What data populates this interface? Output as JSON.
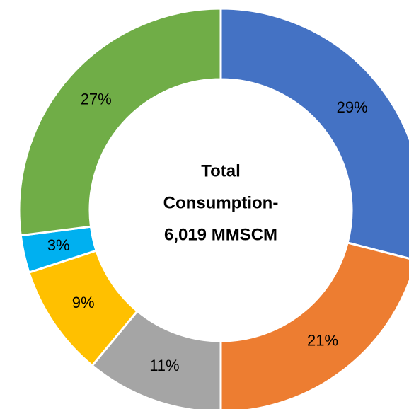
{
  "chart_data": {
    "type": "donut",
    "center_label": [
      "Total",
      "Consumption-",
      "6,019 MMSCM"
    ],
    "values": [
      29,
      21,
      11,
      9,
      3,
      27
    ],
    "value_labels": [
      "29%",
      "21%",
      "11%",
      "9%",
      "3%",
      "27%"
    ],
    "colors": [
      "#4472c4",
      "#ed7d31",
      "#a5a5a5",
      "#ffc000",
      "#00b0f0",
      "#70ad47"
    ]
  }
}
